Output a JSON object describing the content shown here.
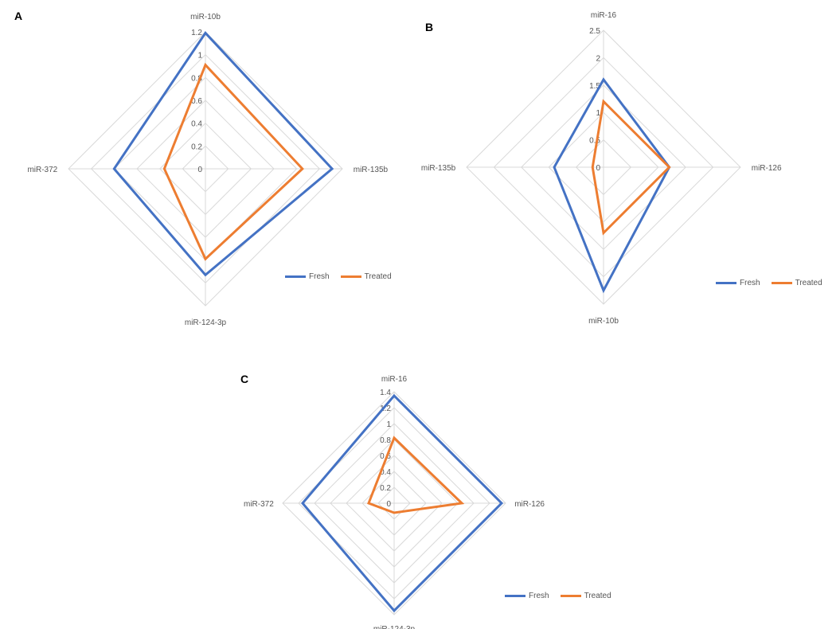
{
  "colors": {
    "fresh": "#4472C4",
    "treated": "#ED7D31",
    "grid": "#d9d9d9"
  },
  "chart_data": [
    {
      "panel": "A",
      "type": "radar",
      "axes": [
        "miR-10b",
        "miR-135b",
        "miR-124-3p",
        "miR-372"
      ],
      "ticks": [
        "0",
        "0.2",
        "0.4",
        "0.6",
        "0.8",
        "1",
        "1.2"
      ],
      "ylim": [
        0,
        1.2
      ],
      "series": [
        {
          "name": "Fresh",
          "values": [
            1.19,
            1.11,
            0.93,
            0.8
          ]
        },
        {
          "name": "Treated",
          "values": [
            0.91,
            0.85,
            0.79,
            0.36
          ]
        }
      ],
      "legend_position": "bottom-right"
    },
    {
      "panel": "B",
      "type": "radar",
      "axes": [
        "miR-16",
        "miR-126",
        "miR-10b",
        "miR-135b"
      ],
      "ticks": [
        "0",
        "0.5",
        "1",
        "1.5",
        "2",
        "2.5"
      ],
      "ylim": [
        0,
        2.5
      ],
      "series": [
        {
          "name": "Fresh",
          "values": [
            1.6,
            1.2,
            2.25,
            0.9
          ]
        },
        {
          "name": "Treated",
          "values": [
            1.2,
            1.2,
            1.2,
            0.2
          ]
        }
      ],
      "legend_position": "bottom-right"
    },
    {
      "panel": "C",
      "type": "radar",
      "axes": [
        "miR-16",
        "miR-126",
        "miR-124-3p",
        "miR-372"
      ],
      "ticks": [
        "0",
        "0.2",
        "0.4",
        "0.6",
        "0.8",
        "1",
        "1.2",
        "1.4"
      ],
      "ylim": [
        0,
        1.4
      ],
      "series": [
        {
          "name": "Fresh",
          "values": [
            1.35,
            1.35,
            1.35,
            1.15
          ]
        },
        {
          "name": "Treated",
          "values": [
            0.82,
            0.85,
            0.12,
            0.32
          ]
        }
      ],
      "legend_position": "bottom-right"
    }
  ],
  "legend": {
    "fresh_label": "Fresh",
    "treated_label": "Treated"
  }
}
